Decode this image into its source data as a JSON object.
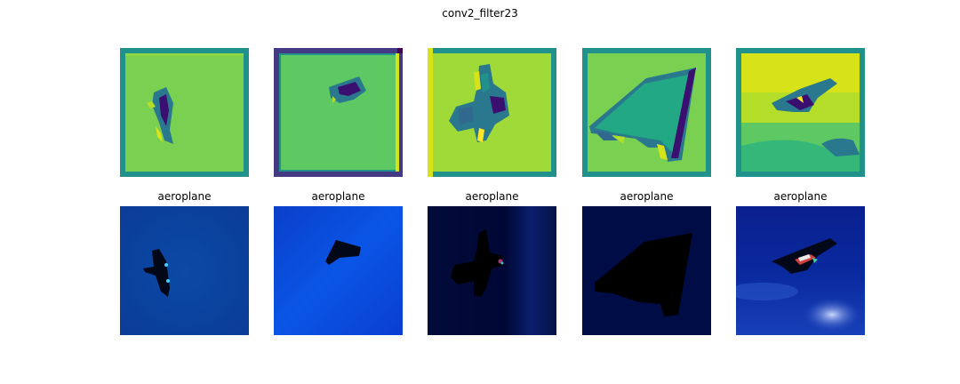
{
  "figure": {
    "title": "conv2_filter23"
  },
  "rows": {
    "feature_maps": {
      "count": 5
    },
    "images": {
      "labels": [
        "aeroplane",
        "aeroplane",
        "aeroplane",
        "aeroplane",
        "aeroplane"
      ]
    }
  },
  "colors": {
    "viridis_teal": "#21918c",
    "viridis_green": "#7ad151",
    "viridis_yellow": "#d8e219",
    "viridis_purple": "#440154",
    "image_blue": "#0a3fa8",
    "image_dark_navy": "#000c45"
  }
}
